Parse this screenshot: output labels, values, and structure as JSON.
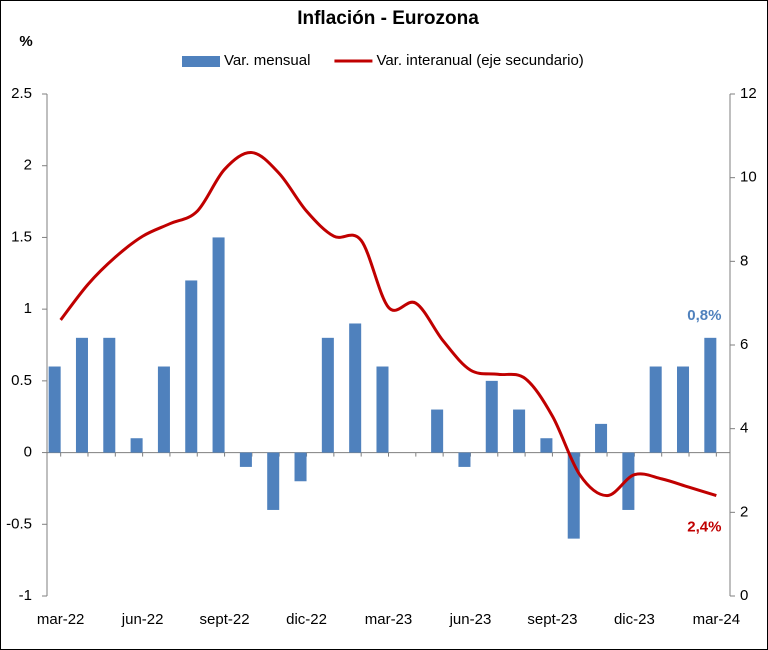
{
  "chart_data": {
    "type": "bar-line",
    "title": "Inflación - Eurozona",
    "y_label": "%",
    "categories": [
      "mar-22",
      null,
      null,
      "jun-22",
      null,
      null,
      "sept-22",
      null,
      null,
      "dic-22",
      null,
      null,
      "mar-23",
      null,
      null,
      "jun-23",
      null,
      null,
      "sept-23",
      null,
      null,
      "dic-23",
      null,
      null,
      "mar-24"
    ],
    "series": [
      {
        "name": "Var. mensual",
        "color": "#4f81bd",
        "type": "bar",
        "values": [
          0.6,
          0.8,
          0.8,
          0.1,
          0.6,
          1.2,
          1.5,
          -0.1,
          -0.4,
          -0.2,
          0.8,
          0.9,
          0.6,
          0,
          0.3,
          -0.1,
          0.5,
          0.3,
          0.1,
          -0.6,
          0.2,
          -0.4,
          0.6,
          0.6,
          0.8
        ]
      },
      {
        "name": "Var. interanual (eje secundario)",
        "color": "#c00000",
        "type": "line",
        "axis": "y2",
        "values": [
          6.6,
          7.45,
          8.1,
          8.6,
          8.9,
          9.2,
          10.2,
          10.6,
          10.1,
          9.2,
          8.6,
          8.5,
          6.9,
          7.0,
          6.1,
          5.4,
          5.3,
          5.2,
          4.3,
          2.9,
          2.4,
          2.9,
          2.8,
          2.6,
          2.4
        ]
      }
    ],
    "annotations": [
      {
        "text": "0,8%",
        "series": 0,
        "index": 24,
        "color": "#4f81bd"
      },
      {
        "text": "2,4%",
        "series": 1,
        "index": 24,
        "color": "#c00000"
      }
    ],
    "ylim": [
      -1,
      2.5
    ],
    "yticks": [
      -1,
      -0.5,
      0,
      0.5,
      1,
      1.5,
      2,
      2.5
    ],
    "y2lim": [
      0,
      12
    ],
    "y2ticks": [
      0,
      2,
      4,
      6,
      8,
      10,
      12
    ],
    "legend": "top",
    "grid": false
  }
}
